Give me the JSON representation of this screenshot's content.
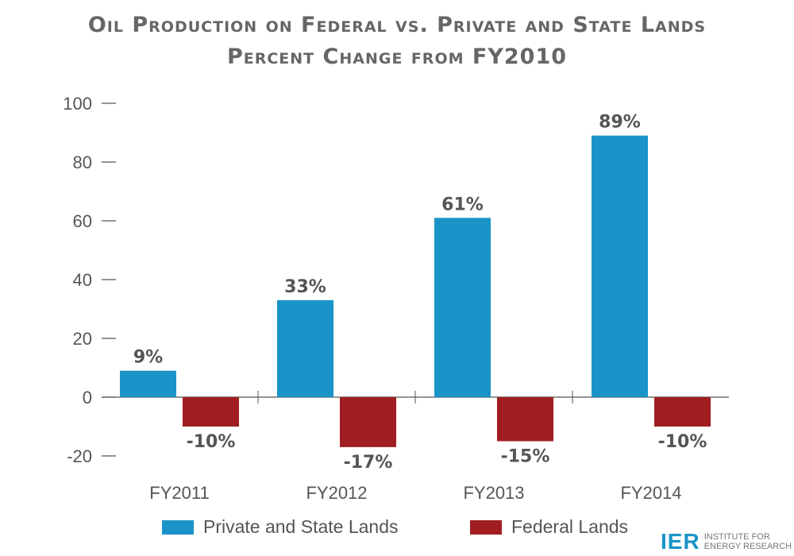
{
  "chart_data": {
    "type": "bar",
    "title": "Oil Production on Federal vs. Private and State Lands",
    "subtitle": "Percent Change from FY2010",
    "categories": [
      "FY2011",
      "FY2012",
      "FY2013",
      "FY2014"
    ],
    "series": [
      {
        "name": "Private and State Lands",
        "values": [
          9,
          33,
          61,
          89
        ],
        "labels": [
          "9%",
          "33%",
          "61%",
          "89%"
        ],
        "color": "#1a94c8"
      },
      {
        "name": "Federal Lands",
        "values": [
          -10,
          -17,
          -15,
          -10
        ],
        "labels": [
          "-10%",
          "-17%",
          "-15%",
          "-10%"
        ],
        "color": "#a01d21"
      }
    ],
    "ylim": [
      -20,
      100
    ],
    "yticks": [
      -20,
      0,
      20,
      40,
      60,
      80,
      100
    ],
    "ytick_labels": [
      "-20",
      "0",
      "20",
      "40",
      "60",
      "80",
      "100"
    ],
    "grid": false,
    "legend": "bottom"
  },
  "logo": {
    "abbr": "IER",
    "line1": "INSTITUTE FOR",
    "line2": "ENERGY RESEARCH"
  }
}
